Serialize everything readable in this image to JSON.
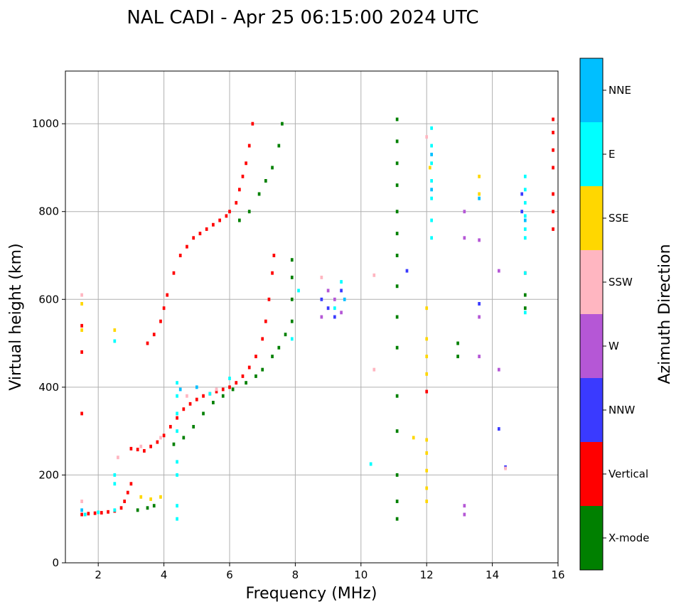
{
  "chart_data": {
    "type": "scatter",
    "title": "NAL CADI - Apr 25 06:15:00 2024 UTC",
    "xlabel": "Frequency (MHz)",
    "ylabel": "Virtual height (km)",
    "xlim": [
      1,
      16
    ],
    "ylim": [
      0,
      1120
    ],
    "xticks": [
      2,
      4,
      6,
      8,
      10,
      12,
      14,
      16
    ],
    "yticks": [
      0,
      200,
      400,
      600,
      800,
      1000
    ],
    "grid": true,
    "colorbar": {
      "label": "Azimuth Direction",
      "categories": [
        {
          "name": "X-mode",
          "color": "#008000"
        },
        {
          "name": "Vertical",
          "color": "#ff0000"
        },
        {
          "name": "NNW",
          "color": "#3a3aff"
        },
        {
          "name": "W",
          "color": "#b557d6"
        },
        {
          "name": "SSW",
          "color": "#ffb6c1"
        },
        {
          "name": "SSE",
          "color": "#ffd700"
        },
        {
          "name": "E",
          "color": "#00ffff"
        },
        {
          "name": "NNE",
          "color": "#00bfff"
        }
      ]
    },
    "series": [
      {
        "name": "Vertical",
        "color": "#ff0000",
        "points": [
          [
            1.5,
            110
          ],
          [
            1.7,
            112
          ],
          [
            1.9,
            113
          ],
          [
            2.1,
            114
          ],
          [
            2.3,
            116
          ],
          [
            2.5,
            118
          ],
          [
            2.7,
            125
          ],
          [
            2.8,
            140
          ],
          [
            2.9,
            160
          ],
          [
            3.0,
            180
          ],
          [
            3.0,
            260
          ],
          [
            3.2,
            258
          ],
          [
            3.4,
            255
          ],
          [
            3.6,
            265
          ],
          [
            3.8,
            275
          ],
          [
            4.0,
            290
          ],
          [
            4.2,
            310
          ],
          [
            4.4,
            330
          ],
          [
            4.6,
            350
          ],
          [
            4.8,
            362
          ],
          [
            5.0,
            372
          ],
          [
            5.2,
            380
          ],
          [
            5.4,
            385
          ],
          [
            5.6,
            390
          ],
          [
            5.8,
            395
          ],
          [
            6.0,
            400
          ],
          [
            6.2,
            410
          ],
          [
            6.4,
            425
          ],
          [
            6.6,
            445
          ],
          [
            6.8,
            470
          ],
          [
            7.0,
            510
          ],
          [
            7.1,
            550
          ],
          [
            7.2,
            600
          ],
          [
            7.3,
            660
          ],
          [
            7.35,
            700
          ],
          [
            3.5,
            500
          ],
          [
            3.7,
            520
          ],
          [
            3.9,
            550
          ],
          [
            4.0,
            580
          ],
          [
            4.1,
            610
          ],
          [
            4.3,
            660
          ],
          [
            4.5,
            700
          ],
          [
            4.7,
            720
          ],
          [
            4.9,
            740
          ],
          [
            5.1,
            750
          ],
          [
            5.3,
            760
          ],
          [
            5.5,
            770
          ],
          [
            5.7,
            780
          ],
          [
            5.9,
            790
          ],
          [
            6.0,
            800
          ],
          [
            6.2,
            820
          ],
          [
            6.3,
            850
          ],
          [
            6.4,
            880
          ],
          [
            6.5,
            910
          ],
          [
            6.6,
            950
          ],
          [
            6.7,
            1000
          ],
          [
            15.85,
            760
          ],
          [
            15.85,
            800
          ],
          [
            15.85,
            840
          ],
          [
            15.85,
            900
          ],
          [
            15.85,
            940
          ],
          [
            15.85,
            980
          ],
          [
            15.85,
            1010
          ],
          [
            15.0,
            660
          ],
          [
            12.0,
            390
          ],
          [
            1.5,
            340
          ],
          [
            1.5,
            480
          ],
          [
            1.5,
            540
          ]
        ]
      },
      {
        "name": "X-mode",
        "color": "#008000",
        "points": [
          [
            3.2,
            120
          ],
          [
            3.5,
            125
          ],
          [
            3.7,
            130
          ],
          [
            4.3,
            270
          ],
          [
            4.6,
            285
          ],
          [
            4.9,
            310
          ],
          [
            5.2,
            340
          ],
          [
            5.5,
            365
          ],
          [
            5.8,
            380
          ],
          [
            6.1,
            395
          ],
          [
            6.5,
            410
          ],
          [
            6.8,
            425
          ],
          [
            7.0,
            440
          ],
          [
            7.3,
            470
          ],
          [
            7.5,
            490
          ],
          [
            7.7,
            520
          ],
          [
            7.9,
            550
          ],
          [
            7.9,
            600
          ],
          [
            7.9,
            650
          ],
          [
            7.9,
            690
          ],
          [
            6.3,
            780
          ],
          [
            6.6,
            800
          ],
          [
            6.9,
            840
          ],
          [
            7.1,
            870
          ],
          [
            7.3,
            900
          ],
          [
            7.5,
            950
          ],
          [
            7.6,
            1000
          ],
          [
            11.1,
            100
          ],
          [
            11.1,
            140
          ],
          [
            11.1,
            200
          ],
          [
            11.1,
            300
          ],
          [
            11.1,
            380
          ],
          [
            11.1,
            490
          ],
          [
            11.1,
            560
          ],
          [
            11.1,
            630
          ],
          [
            11.1,
            700
          ],
          [
            11.1,
            750
          ],
          [
            11.1,
            800
          ],
          [
            11.1,
            860
          ],
          [
            11.1,
            910
          ],
          [
            11.1,
            960
          ],
          [
            11.1,
            1010
          ],
          [
            12.95,
            470
          ],
          [
            12.95,
            500
          ],
          [
            15.0,
            580
          ],
          [
            15.0,
            610
          ]
        ]
      },
      {
        "name": "NNW",
        "color": "#3a3aff",
        "points": [
          [
            8.8,
            600
          ],
          [
            9.0,
            580
          ],
          [
            9.2,
            560
          ],
          [
            9.4,
            620
          ],
          [
            13.6,
            590
          ],
          [
            14.2,
            305
          ],
          [
            14.4,
            218
          ],
          [
            14.9,
            800
          ],
          [
            14.9,
            840
          ],
          [
            11.4,
            665
          ]
        ]
      },
      {
        "name": "W",
        "color": "#b557d6",
        "points": [
          [
            8.8,
            560
          ],
          [
            9.0,
            620
          ],
          [
            9.2,
            600
          ],
          [
            9.4,
            570
          ],
          [
            13.15,
            110
          ],
          [
            13.15,
            130
          ],
          [
            13.15,
            740
          ],
          [
            13.15,
            800
          ],
          [
            13.6,
            560
          ],
          [
            13.6,
            735
          ],
          [
            14.2,
            665
          ],
          [
            14.2,
            440
          ],
          [
            13.6,
            470
          ]
        ]
      },
      {
        "name": "SSW",
        "color": "#ffb6c1",
        "points": [
          [
            2.6,
            240
          ],
          [
            3.3,
            265
          ],
          [
            3.9,
            285
          ],
          [
            4.7,
            380
          ],
          [
            5.6,
            395
          ],
          [
            8.8,
            650
          ],
          [
            10.4,
            655
          ],
          [
            10.4,
            440
          ],
          [
            12.0,
            970
          ],
          [
            14.4,
            215
          ],
          [
            1.5,
            140
          ],
          [
            1.5,
            610
          ]
        ]
      },
      {
        "name": "SSE",
        "color": "#ffd700",
        "points": [
          [
            3.3,
            150
          ],
          [
            3.6,
            145
          ],
          [
            3.9,
            150
          ],
          [
            12.0,
            140
          ],
          [
            12.0,
            170
          ],
          [
            12.0,
            210
          ],
          [
            12.0,
            250
          ],
          [
            12.0,
            280
          ],
          [
            12.0,
            430
          ],
          [
            12.0,
            470
          ],
          [
            12.0,
            510
          ],
          [
            12.0,
            580
          ],
          [
            12.1,
            900
          ],
          [
            13.6,
            840
          ],
          [
            13.6,
            880
          ],
          [
            11.6,
            285
          ],
          [
            1.5,
            530
          ],
          [
            1.5,
            590
          ],
          [
            2.5,
            530
          ]
        ]
      },
      {
        "name": "E",
        "color": "#00ffff",
        "points": [
          [
            1.6,
            110
          ],
          [
            2.0,
            115
          ],
          [
            2.5,
            120
          ],
          [
            2.5,
            180
          ],
          [
            2.5,
            200
          ],
          [
            4.4,
            100
          ],
          [
            4.4,
            130
          ],
          [
            4.4,
            200
          ],
          [
            4.4,
            230
          ],
          [
            4.4,
            300
          ],
          [
            4.4,
            340
          ],
          [
            4.4,
            380
          ],
          [
            4.4,
            410
          ],
          [
            5.4,
            385
          ],
          [
            6.0,
            420
          ],
          [
            7.9,
            510
          ],
          [
            8.1,
            620
          ],
          [
            9.2,
            580
          ],
          [
            9.4,
            640
          ],
          [
            10.3,
            225
          ],
          [
            12.15,
            740
          ],
          [
            12.15,
            780
          ],
          [
            12.15,
            830
          ],
          [
            12.15,
            870
          ],
          [
            12.15,
            910
          ],
          [
            12.15,
            950
          ],
          [
            12.15,
            990
          ],
          [
            15.0,
            570
          ],
          [
            15.0,
            660
          ],
          [
            15.0,
            740
          ],
          [
            15.0,
            760
          ],
          [
            15.0,
            790
          ],
          [
            15.0,
            820
          ],
          [
            15.0,
            850
          ],
          [
            15.0,
            880
          ],
          [
            2.5,
            505
          ]
        ]
      },
      {
        "name": "NNE",
        "color": "#00bfff",
        "points": [
          [
            12.15,
            850
          ],
          [
            12.15,
            930
          ],
          [
            13.6,
            830
          ],
          [
            15.0,
            780
          ],
          [
            9.5,
            600
          ],
          [
            5.0,
            400
          ],
          [
            4.5,
            395
          ],
          [
            1.5,
            120
          ]
        ]
      }
    ]
  }
}
